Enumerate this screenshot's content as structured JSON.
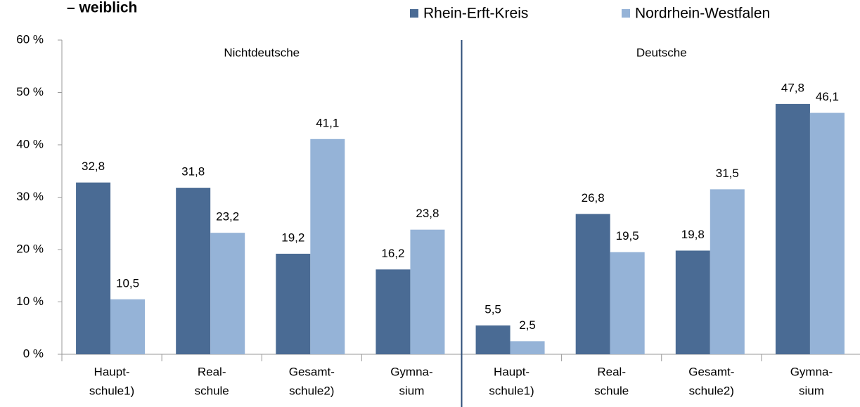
{
  "chart_data": {
    "type": "bar",
    "title": "– weiblich",
    "annotations": [
      "Nichtdeutsche",
      "Deutsche"
    ],
    "categories": [
      [
        "Haupt-",
        "schule1)"
      ],
      [
        "Real-",
        "schule"
      ],
      [
        "Gesamt-",
        "schule2)"
      ],
      [
        "Gymna-",
        "sium"
      ],
      [
        "Haupt-",
        "schule1)"
      ],
      [
        "Real-",
        "schule"
      ],
      [
        "Gesamt-",
        "schule2)"
      ],
      [
        "Gymna-",
        "sium"
      ]
    ],
    "series": [
      {
        "name": "Rhein-Erft-Kreis",
        "color": "#4a6b94",
        "values": [
          32.8,
          31.8,
          19.2,
          16.2,
          5.5,
          26.8,
          19.8,
          47.8
        ],
        "value_labels": [
          "32,8",
          "31,8",
          "19,2",
          "16,2",
          "5,5",
          "26,8",
          "19,8",
          "47,8"
        ]
      },
      {
        "name": "Nordrhein-Westfalen",
        "color": "#95b3d7",
        "values": [
          10.5,
          23.2,
          41.1,
          23.8,
          2.5,
          19.5,
          31.5,
          46.1
        ],
        "value_labels": [
          "10,5",
          "23,2",
          "41,1",
          "23,8",
          "2,5",
          "19,5",
          "31,5",
          "46,1"
        ]
      }
    ],
    "ylim": [
      0,
      60
    ],
    "yticks": [
      {
        "value": 0,
        "label": "0 %"
      },
      {
        "value": 10,
        "label": "10 %"
      },
      {
        "value": 20,
        "label": "20 %"
      },
      {
        "value": 30,
        "label": "30 %"
      },
      {
        "value": 40,
        "label": "40 %"
      },
      {
        "value": 50,
        "label": "50 %"
      },
      {
        "value": 60,
        "label": "60 %"
      }
    ],
    "legend": "top-right"
  }
}
